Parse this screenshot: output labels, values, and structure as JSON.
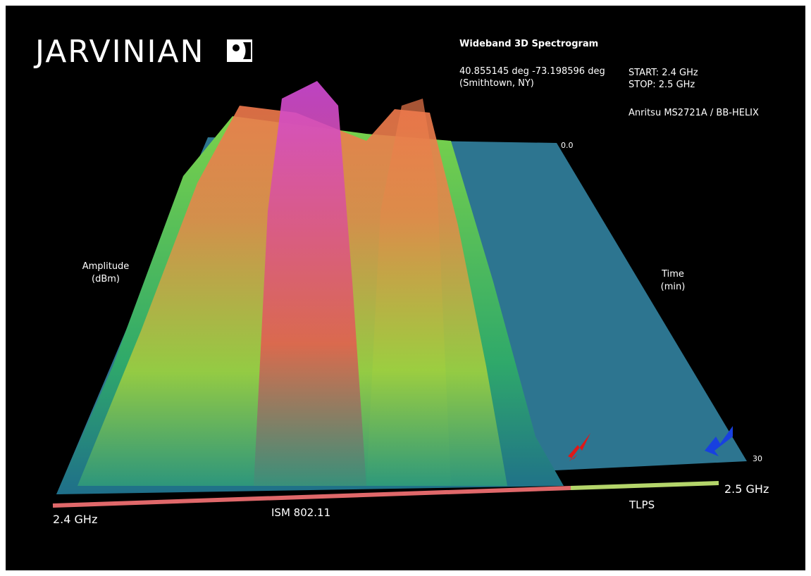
{
  "logo": {
    "text": "JARVINIAN"
  },
  "header": {
    "title": "Wideband 3D Spectrogram",
    "coords": "40.855145 deg -73.198596 deg",
    "place": "(Smithtown, NY)",
    "start": "START:  2.4 GHz",
    "stop": "STOP:  2.5 GHz",
    "instrument": "Anritsu MS2721A / BB-HELIX"
  },
  "axes": {
    "time_start": "0.0",
    "time_end": "30",
    "amplitude_label": "Amplitude",
    "amplitude_unit": "(dBm)",
    "time_label": "Time",
    "time_unit": "(min)",
    "freq_start": "2.4 GHz",
    "freq_end": "2.5 GHz"
  },
  "bands": [
    "ISM 802.11",
    "TLPS"
  ]
}
